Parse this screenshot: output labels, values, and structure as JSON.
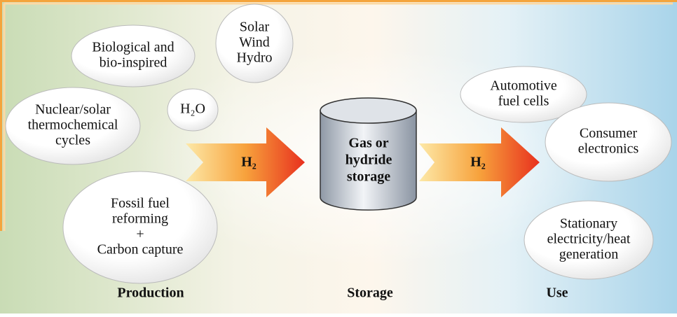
{
  "sources": [
    {
      "lines": [
        "Biological and",
        "bio-inspired"
      ]
    },
    {
      "lines": [
        "Solar",
        "Wind",
        "Hydro"
      ]
    },
    {
      "lines": [
        "H₂O"
      ]
    },
    {
      "lines": [
        "Nuclear/solar",
        "thermochemical",
        "cycles"
      ]
    },
    {
      "lines": [
        "Fossil fuel",
        "reforming",
        "+",
        "Carbon capture"
      ]
    }
  ],
  "arrows": [
    "H₂",
    "H₂"
  ],
  "storage": {
    "lines": [
      "Gas or",
      "hydride",
      "storage"
    ]
  },
  "uses": [
    {
      "lines": [
        "Automotive",
        "fuel cells"
      ]
    },
    {
      "lines": [
        "Consumer",
        "electronics"
      ]
    },
    {
      "lines": [
        "Stationary",
        "electricity/heat",
        "generation"
      ]
    }
  ],
  "stages": [
    "Production",
    "Storage",
    "Use"
  ]
}
